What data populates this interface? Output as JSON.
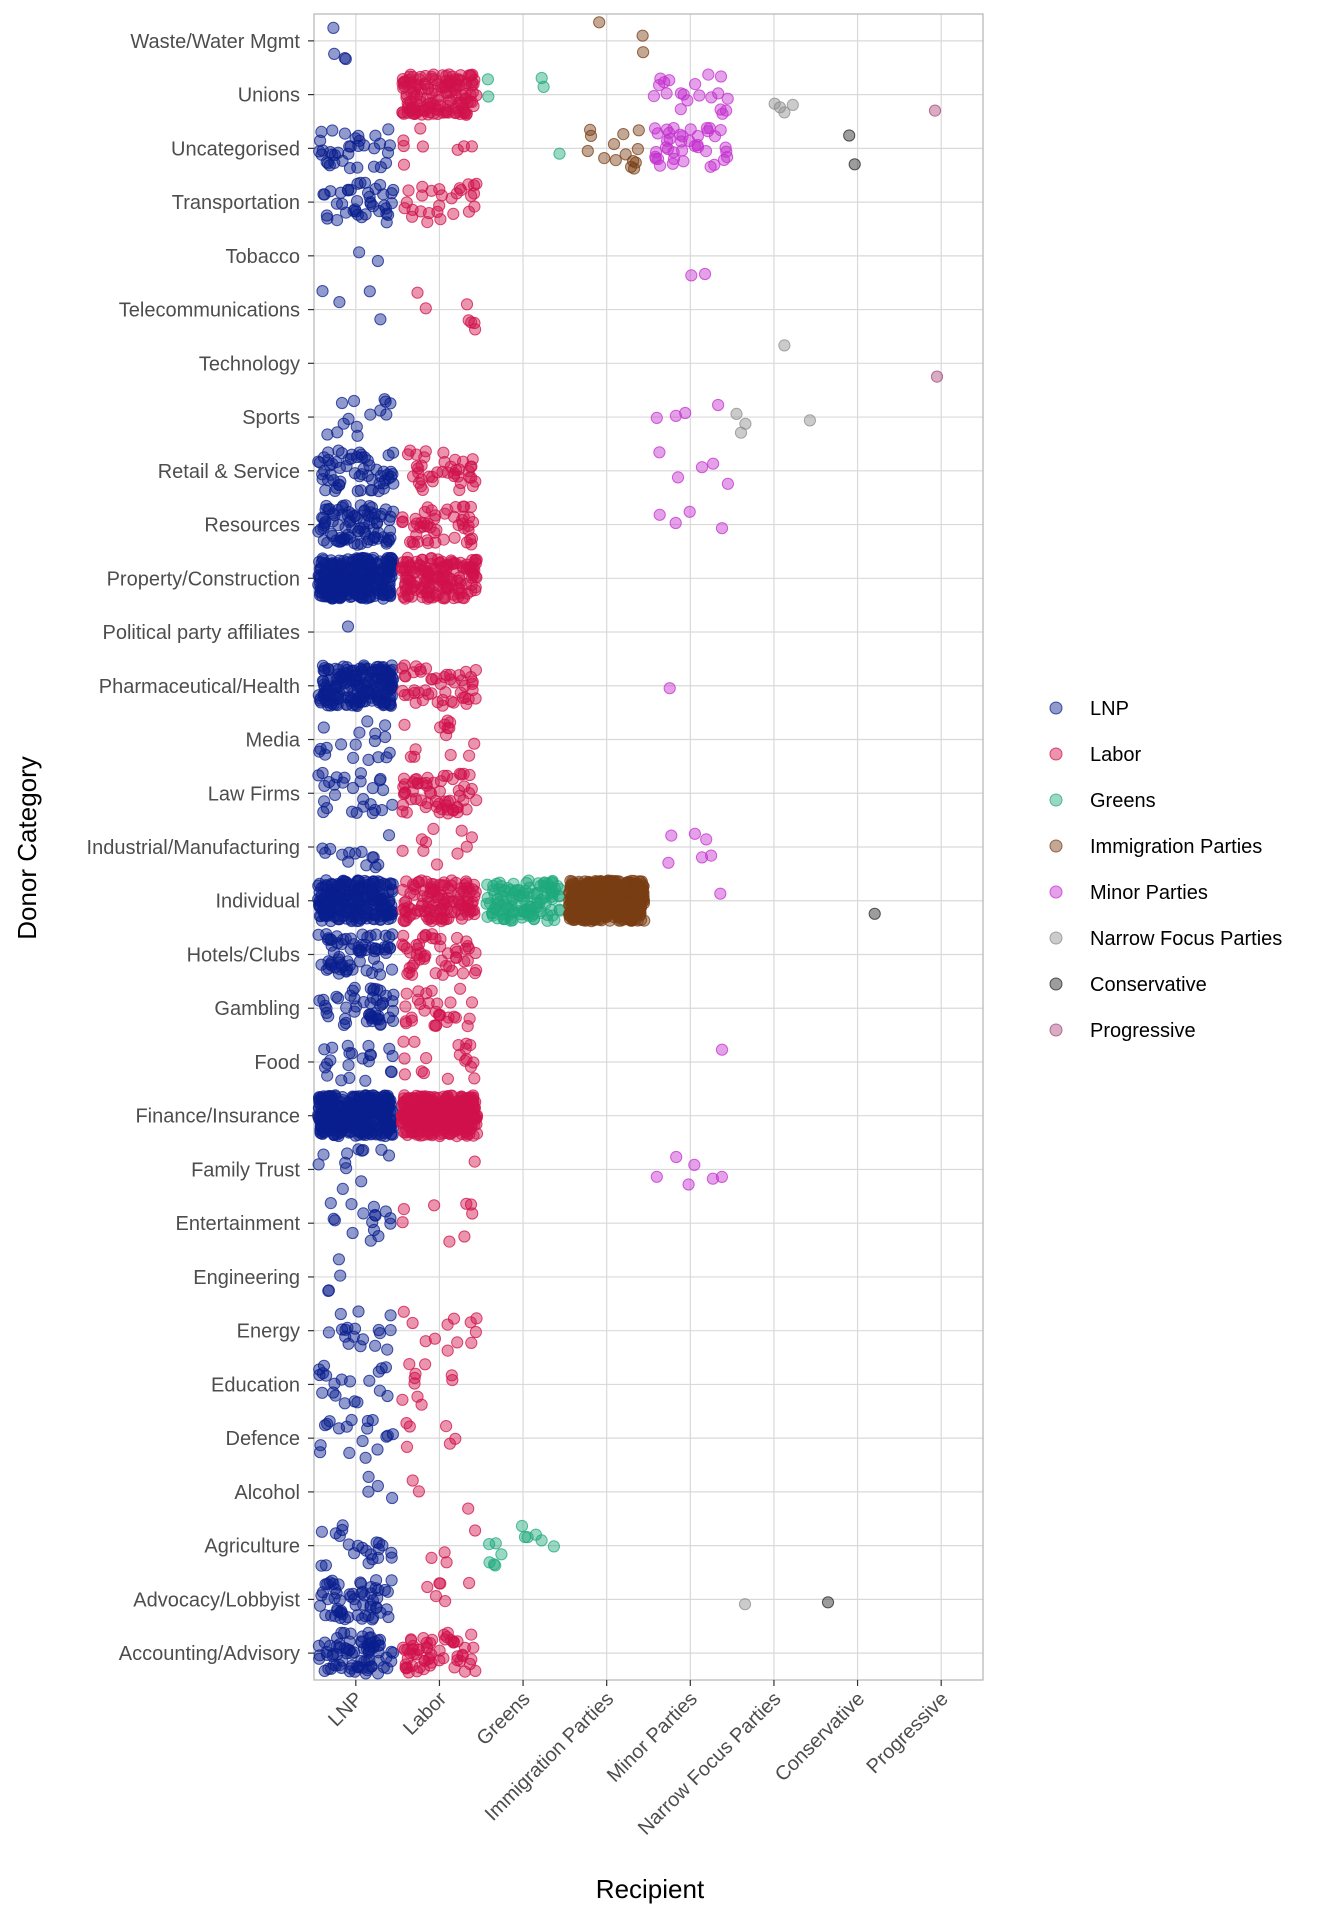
{
  "chart_data": {
    "type": "scatter",
    "subtype": "jitter",
    "xlabel": "Recipient",
    "ylabel": "Donor Category",
    "grid": true,
    "legend_position": "right",
    "x_categories": [
      "LNP",
      "Labor",
      "Greens",
      "Immigration Parties",
      "Minor Parties",
      "Narrow Focus Parties",
      "Conservative",
      "Progressive"
    ],
    "y_categories": [
      "Accounting/Advisory",
      "Advocacy/Lobbyist",
      "Agriculture",
      "Alcohol",
      "Defence",
      "Education",
      "Energy",
      "Engineering",
      "Entertainment",
      "Family Trust",
      "Finance/Insurance",
      "Food",
      "Gambling",
      "Hotels/Clubs",
      "Individual",
      "Industrial/Manufacturing",
      "Law Firms",
      "Media",
      "Pharmaceutical/Health",
      "Political party affiliates",
      "Property/Construction",
      "Resources",
      "Retail & Service",
      "Sports",
      "Technology",
      "Telecommunications",
      "Tobacco",
      "Transportation",
      "Uncategorised",
      "Unions",
      "Waste/Water Mgmt"
    ],
    "series": [
      {
        "name": "LNP",
        "color": "#0a1f8f",
        "x": "LNP",
        "counts": {
          "Accounting/Advisory": 80,
          "Advocacy/Lobbyist": 60,
          "Agriculture": 22,
          "Alcohol": 4,
          "Defence": 18,
          "Education": 20,
          "Energy": 18,
          "Engineering": 4,
          "Entertainment": 16,
          "Family Trust": 12,
          "Finance/Insurance": 400,
          "Food": 22,
          "Gambling": 50,
          "Hotels/Clubs": 70,
          "Individual": 250,
          "Industrial/Manufacturing": 14,
          "Law Firms": 28,
          "Media": 18,
          "Pharmaceutical/Health": 200,
          "Political party affiliates": 1,
          "Property/Construction": 300,
          "Resources": 90,
          "Retail & Service": 60,
          "Sports": 14,
          "Technology": 0,
          "Telecommunications": 4,
          "Tobacco": 2,
          "Transportation": 40,
          "Uncategorised": 35,
          "Unions": 0,
          "Waste/Water Mgmt": 4
        }
      },
      {
        "name": "Labor",
        "color": "#d0114b",
        "x": "Labor",
        "counts": {
          "Accounting/Advisory": 60,
          "Advocacy/Lobbyist": 6,
          "Agriculture": 4,
          "Alcohol": 3,
          "Defence": 6,
          "Education": 10,
          "Energy": 12,
          "Engineering": 0,
          "Entertainment": 8,
          "Family Trust": 1,
          "Finance/Insurance": 350,
          "Food": 18,
          "Gambling": 30,
          "Hotels/Clubs": 50,
          "Individual": 120,
          "Industrial/Manufacturing": 10,
          "Law Firms": 60,
          "Media": 14,
          "Pharmaceutical/Health": 50,
          "Political party affiliates": 0,
          "Property/Construction": 160,
          "Resources": 50,
          "Retail & Service": 40,
          "Sports": 0,
          "Technology": 0,
          "Telecommunications": 7,
          "Tobacco": 0,
          "Transportation": 28,
          "Uncategorised": 8,
          "Unions": 150,
          "Waste/Water Mgmt": 0
        }
      },
      {
        "name": "Greens",
        "color": "#1ea97c",
        "x": "Greens",
        "counts": {
          "Agriculture": 12,
          "Individual": 120,
          "Uncategorised": 1,
          "Unions": 4
        }
      },
      {
        "name": "Immigration Parties",
        "color": "#7a3e14",
        "x": "Immigration Parties",
        "counts": {
          "Individual": 600,
          "Uncategorised": 14,
          "Waste/Water Mgmt": 3
        }
      },
      {
        "name": "Minor Parties",
        "color": "#c42fcf",
        "x": "Minor Parties",
        "counts": {
          "Family Trust": 6,
          "Food": 1,
          "Individual": 1,
          "Industrial/Manufacturing": 6,
          "Pharmaceutical/Health": 1,
          "Resources": 4,
          "Retail & Service": 5,
          "Sports": 4,
          "Tobacco": 2,
          "Uncategorised": 40,
          "Unions": 20
        }
      },
      {
        "name": "Narrow Focus Parties",
        "color": "#8c8c8c",
        "x": "Narrow Focus Parties",
        "counts": {
          "Advocacy/Lobbyist": 1,
          "Sports": 4,
          "Technology": 1,
          "Unions": 4
        }
      },
      {
        "name": "Conservative",
        "color": "#262626",
        "x": "Conservative",
        "counts": {
          "Advocacy/Lobbyist": 1,
          "Individual": 1,
          "Uncategorised": 2
        }
      },
      {
        "name": "Progressive",
        "color": "#a8477a",
        "x": "Progressive",
        "counts": {
          "Technology": 1,
          "Unions": 1
        }
      }
    ]
  }
}
